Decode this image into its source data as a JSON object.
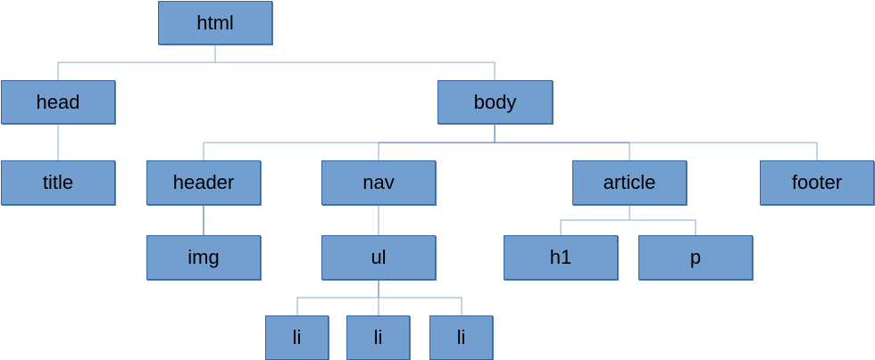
{
  "tree": {
    "nodes": {
      "html": "html",
      "head": "head",
      "body": "body",
      "title": "title",
      "header": "header",
      "nav": "nav",
      "article": "article",
      "footer": "footer",
      "img": "img",
      "ul": "ul",
      "h1": "h1",
      "p": "p",
      "li1": "li",
      "li2": "li",
      "li3": "li"
    },
    "edges": [
      [
        "html",
        "head"
      ],
      [
        "html",
        "body"
      ],
      [
        "head",
        "title"
      ],
      [
        "body",
        "header"
      ],
      [
        "body",
        "nav"
      ],
      [
        "body",
        "article"
      ],
      [
        "body",
        "footer"
      ],
      [
        "header",
        "img"
      ],
      [
        "nav",
        "ul"
      ],
      [
        "article",
        "h1"
      ],
      [
        "article",
        "p"
      ],
      [
        "ul",
        "li1"
      ],
      [
        "ul",
        "li2"
      ],
      [
        "ul",
        "li3"
      ]
    ],
    "colors": {
      "node_fill": "#729fcf",
      "node_border": "#3465a4",
      "connector": "#8fa9c9",
      "connector_dark": "#3465a4",
      "text": "#000000"
    }
  }
}
